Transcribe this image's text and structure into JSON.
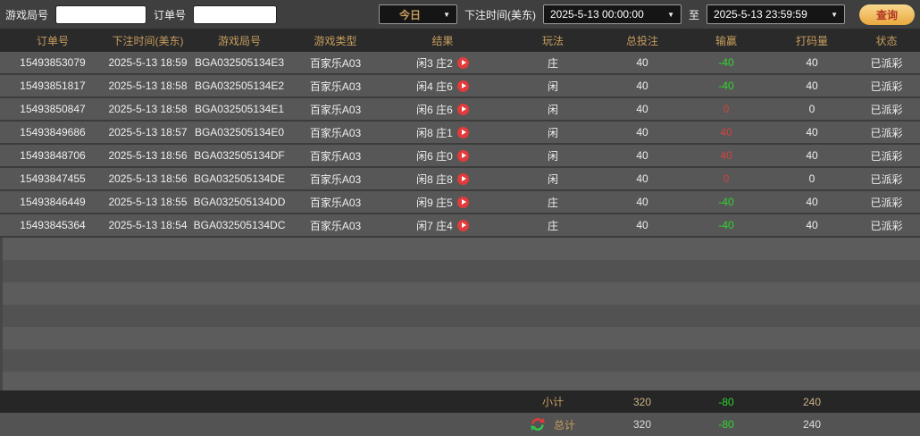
{
  "topbar": {
    "game_round_label": "游戏局号",
    "order_no_label": "订单号",
    "game_round_value": "",
    "order_no_value": "",
    "range_selected": "今日",
    "bet_time_label": "下注时间(美东)",
    "start_time": "2025-5-13 00:00:00",
    "to_label": "至",
    "end_time": "2025-5-13 23:59:59",
    "query_label": "查询"
  },
  "table": {
    "columns": [
      "订单号",
      "下注时间(美东)",
      "游戏局号",
      "游戏类型",
      "结果",
      "玩法",
      "总投注",
      "输赢",
      "打码量",
      "状态"
    ],
    "rows": [
      {
        "order_no": "15493853079",
        "bet_time": "2025-5-13 18:59",
        "round_no": "BGA032505134E3",
        "game_type": "百家乐A03",
        "result": "闲3 庄2",
        "play": "庄",
        "total_bet": "40",
        "win_loss": "-40",
        "win_loss_color": "green",
        "turnover": "40",
        "status": "已派彩"
      },
      {
        "order_no": "15493851817",
        "bet_time": "2025-5-13 18:58",
        "round_no": "BGA032505134E2",
        "game_type": "百家乐A03",
        "result": "闲4 庄6",
        "play": "闲",
        "total_bet": "40",
        "win_loss": "-40",
        "win_loss_color": "green",
        "turnover": "40",
        "status": "已派彩"
      },
      {
        "order_no": "15493850847",
        "bet_time": "2025-5-13 18:58",
        "round_no": "BGA032505134E1",
        "game_type": "百家乐A03",
        "result": "闲6 庄6",
        "play": "闲",
        "total_bet": "40",
        "win_loss": "0",
        "win_loss_color": "red",
        "turnover": "0",
        "status": "已派彩"
      },
      {
        "order_no": "15493849686",
        "bet_time": "2025-5-13 18:57",
        "round_no": "BGA032505134E0",
        "game_type": "百家乐A03",
        "result": "闲8 庄1",
        "play": "闲",
        "total_bet": "40",
        "win_loss": "40",
        "win_loss_color": "red",
        "turnover": "40",
        "status": "已派彩"
      },
      {
        "order_no": "15493848706",
        "bet_time": "2025-5-13 18:56",
        "round_no": "BGA032505134DF",
        "game_type": "百家乐A03",
        "result": "闲6 庄0",
        "play": "闲",
        "total_bet": "40",
        "win_loss": "40",
        "win_loss_color": "red",
        "turnover": "40",
        "status": "已派彩"
      },
      {
        "order_no": "15493847455",
        "bet_time": "2025-5-13 18:56",
        "round_no": "BGA032505134DE",
        "game_type": "百家乐A03",
        "result": "闲8 庄8",
        "play": "闲",
        "total_bet": "40",
        "win_loss": "0",
        "win_loss_color": "red",
        "turnover": "0",
        "status": "已派彩"
      },
      {
        "order_no": "15493846449",
        "bet_time": "2025-5-13 18:55",
        "round_no": "BGA032505134DD",
        "game_type": "百家乐A03",
        "result": "闲9 庄5",
        "play": "庄",
        "total_bet": "40",
        "win_loss": "-40",
        "win_loss_color": "green",
        "turnover": "40",
        "status": "已派彩"
      },
      {
        "order_no": "15493845364",
        "bet_time": "2025-5-13 18:54",
        "round_no": "BGA032505134DC",
        "game_type": "百家乐A03",
        "result": "闲7 庄4",
        "play": "庄",
        "total_bet": "40",
        "win_loss": "-40",
        "win_loss_color": "green",
        "turnover": "40",
        "status": "已派彩"
      }
    ],
    "subtotal": {
      "label": "小计",
      "total_bet": "320",
      "win_loss": "-80",
      "win_loss_color": "green",
      "turnover": "240"
    },
    "grand_total": {
      "label": "总计",
      "total_bet": "320",
      "win_loss": "-80",
      "win_loss_color": "green",
      "turnover": "240"
    }
  },
  "icons": {
    "replay": "replay-play-icon",
    "sync": "sync-icon",
    "caret": "chevron-down-icon"
  },
  "colors": {
    "header_text": "#c79d5e",
    "win_red": "#cf4541",
    "loss_green": "#2ed52e",
    "query_button_top": "#f8d78e",
    "query_button_bottom": "#eaa83e",
    "query_button_text": "#b23425",
    "row_bg": "#575757",
    "header_bg": "#2a2a2a",
    "subtotal_bg": "#262626",
    "topbar_bg": "#3f3f3f",
    "play_icon_red": "#e23b3b"
  }
}
